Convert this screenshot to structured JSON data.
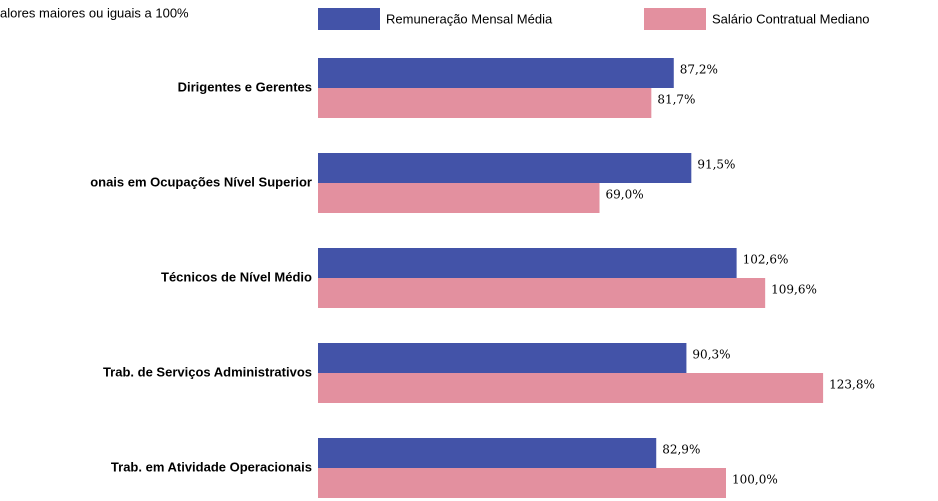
{
  "chart_data": {
    "type": "barh",
    "subtitle": "alores maiores ou iguais a 100%",
    "categories": [
      "Dirigentes e Gerentes",
      "onais em Ocupações Nível Superior",
      "Técnicos de Nível Médio",
      "Trab. de Serviços Administrativos",
      "Trab. em Atividade Operacionais"
    ],
    "series": [
      {
        "name": "Remuneração Mensal Média",
        "color": "#4353a8",
        "values": [
          87.2,
          91.5,
          102.6,
          90.3,
          82.9
        ],
        "value_labels": [
          "87,2%",
          "91,5%",
          "102,6%",
          "90,3%",
          "82,9%"
        ]
      },
      {
        "name": "Salário Contratual Mediano",
        "color": "#e3909f",
        "values": [
          81.7,
          69.0,
          109.6,
          123.8,
          100.0
        ],
        "value_labels": [
          "81,7%",
          "69,0%",
          "109,6%",
          "123,8%",
          "100,0%"
        ]
      }
    ],
    "xlim": [
      0,
      150
    ],
    "legend": "top"
  }
}
